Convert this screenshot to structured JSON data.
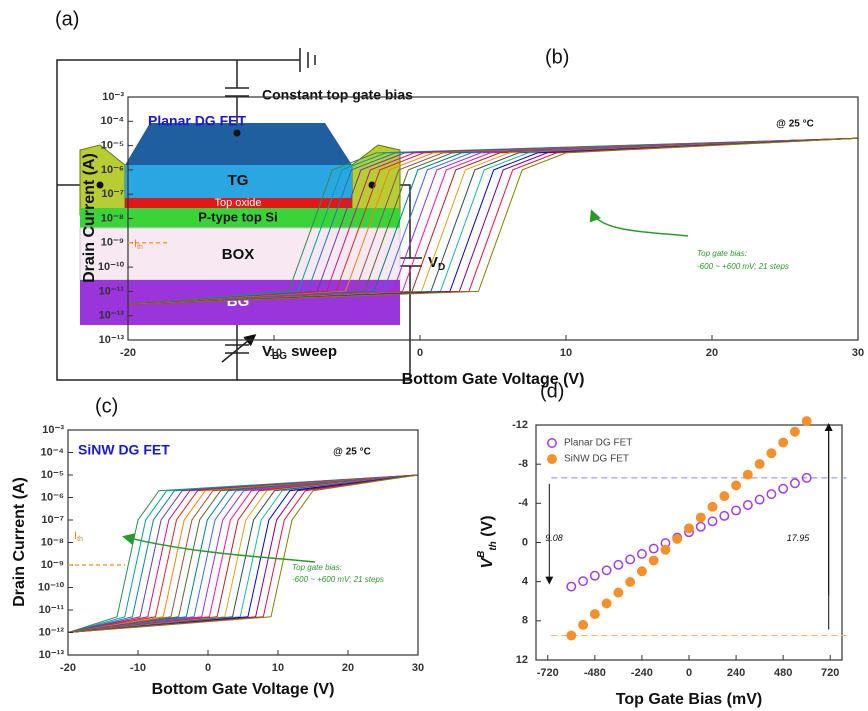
{
  "diagram": {
    "label": "(a)",
    "cap_label": "Constant top gate bias",
    "tg": "TG",
    "oxide": "Top oxide",
    "si": "P-type top Si",
    "box": "BOX",
    "bg": "BG",
    "vd": {
      "main": "V",
      "sub": "D"
    },
    "vbg": {
      "main": "V",
      "sub": "BG",
      "rest": " sweep"
    }
  },
  "chart_data": [
    {
      "type": "logline",
      "label": "(b)",
      "title": "Planar DG FET",
      "temperature": "@ 25 °C",
      "ylabel": "Drain Current (A)",
      "xlabel": "Bottom Gate Voltage (V)",
      "annotations": [
        "Top gate bias:",
        "-600 ~ +600 mV; 21 steps"
      ],
      "threshold_label": {
        "main": "I",
        "sub": "th"
      },
      "threshold_current": 1e-09,
      "xlim": [
        -20,
        30
      ],
      "xticks": [
        -20,
        -10,
        0,
        10,
        20,
        30
      ],
      "ylim": [
        1e-13,
        0.001
      ],
      "log_y": true,
      "yticks": [
        {
          "value": 0.001,
          "label": "10⁻³"
        },
        {
          "value": 0.0001,
          "label": "10⁻⁴"
        },
        {
          "value": 1e-05,
          "label": "10⁻⁵"
        },
        {
          "value": 1e-06,
          "label": "10⁻⁶"
        },
        {
          "value": 1e-07,
          "label": "10⁻⁷"
        },
        {
          "value": 1e-08,
          "label": "10⁻⁸"
        },
        {
          "value": 1e-09,
          "label": "10⁻⁹"
        },
        {
          "value": 1e-10,
          "label": "10⁻¹⁰"
        },
        {
          "value": 1e-11,
          "label": "10⁻¹¹"
        },
        {
          "value": 1e-12,
          "label": "10⁻¹²"
        },
        {
          "value": 1e-13,
          "label": "10⁻¹³"
        }
      ],
      "series": [
        {
          "color": "#2e8b57",
          "x": [
            -20,
            -9,
            -6,
            -3,
            30
          ],
          "values": [
            3e-12,
            1e-11,
            1e-06,
            5e-06,
            2e-05
          ]
        },
        {
          "color": "#00a0a0",
          "x": [
            -20,
            -8.35,
            -5.35,
            -2.35,
            30
          ],
          "values": [
            3e-12,
            1e-11,
            1e-06,
            5e-06,
            2e-05
          ]
        },
        {
          "color": "#1f77b4",
          "x": [
            -20,
            -7.7,
            -4.7,
            -1.7,
            30
          ],
          "values": [
            3e-12,
            1e-11,
            1e-06,
            5e-06,
            2e-05
          ]
        },
        {
          "color": "#6a3d9a",
          "x": [
            -20,
            -7.05,
            -4.05,
            -1.05,
            30
          ],
          "values": [
            3e-12,
            1e-11,
            1e-06,
            5e-06,
            2e-05
          ]
        },
        {
          "color": "#c71585",
          "x": [
            -20,
            -6.4,
            -3.4,
            -0.4,
            30
          ],
          "values": [
            3e-12,
            1e-11,
            1e-06,
            5e-06,
            2e-05
          ]
        },
        {
          "color": "#d62728",
          "x": [
            -20,
            -5.75,
            -2.75,
            0.25,
            30
          ],
          "values": [
            3e-12,
            1e-11,
            1e-06,
            5e-06,
            2e-05
          ]
        },
        {
          "color": "#ff7f0e",
          "x": [
            -20,
            -5.1,
            -2.1,
            0.9,
            30
          ],
          "values": [
            3e-12,
            1e-11,
            1e-06,
            5e-06,
            2e-05
          ]
        },
        {
          "color": "#8c564b",
          "x": [
            -20,
            -4.45,
            -1.45,
            1.55,
            30
          ],
          "values": [
            3e-12,
            1e-11,
            1e-06,
            5e-06,
            2e-05
          ]
        },
        {
          "color": "#556b2f",
          "x": [
            -20,
            -3.8,
            -0.8,
            2.2,
            30
          ],
          "values": [
            3e-12,
            1e-11,
            1e-06,
            5e-06,
            2e-05
          ]
        },
        {
          "color": "#008080",
          "x": [
            -20,
            -3.15,
            -0.15,
            2.85,
            30
          ],
          "values": [
            3e-12,
            1e-11,
            1e-06,
            5e-06,
            2e-05
          ]
        },
        {
          "color": "#4169e1",
          "x": [
            -20,
            -2.5,
            0.5,
            3.5,
            30
          ],
          "values": [
            3e-12,
            1e-11,
            1e-06,
            5e-06,
            2e-05
          ]
        },
        {
          "color": "#9932cc",
          "x": [
            -20,
            -1.85,
            1.15,
            4.15,
            30
          ],
          "values": [
            3e-12,
            1e-11,
            1e-06,
            5e-06,
            2e-05
          ]
        },
        {
          "color": "#ff1493",
          "x": [
            -20,
            -1.2,
            1.8,
            4.8,
            30
          ],
          "values": [
            3e-12,
            1e-11,
            1e-06,
            5e-06,
            2e-05
          ]
        },
        {
          "color": "#b22222",
          "x": [
            -20,
            -0.55,
            2.45,
            5.45,
            30
          ],
          "values": [
            3e-12,
            1e-11,
            1e-06,
            5e-06,
            2e-05
          ]
        },
        {
          "color": "#daa520",
          "x": [
            -20,
            0.1,
            3.1,
            6.1,
            30
          ],
          "values": [
            3e-12,
            1e-11,
            1e-06,
            5e-06,
            2e-05
          ]
        },
        {
          "color": "#2f4f4f",
          "x": [
            -20,
            0.75,
            3.75,
            6.75,
            30
          ],
          "values": [
            3e-12,
            1e-11,
            1e-06,
            5e-06,
            2e-05
          ]
        },
        {
          "color": "#20b2aa",
          "x": [
            -20,
            1.4,
            4.4,
            7.4,
            30
          ],
          "values": [
            3e-12,
            1e-11,
            1e-06,
            5e-06,
            2e-05
          ]
        },
        {
          "color": "#0000cd",
          "x": [
            -20,
            2.05,
            5.05,
            8.05,
            30
          ],
          "values": [
            3e-12,
            1e-11,
            1e-06,
            5e-06,
            2e-05
          ]
        },
        {
          "color": "#800080",
          "x": [
            -20,
            2.7,
            5.7,
            8.7,
            30
          ],
          "values": [
            3e-12,
            1e-11,
            1e-06,
            5e-06,
            2e-05
          ]
        },
        {
          "color": "#dc143c",
          "x": [
            -20,
            3.35,
            6.35,
            9.35,
            30
          ],
          "values": [
            3e-12,
            1e-11,
            1e-06,
            5e-06,
            2e-05
          ]
        },
        {
          "color": "#808000",
          "x": [
            -20,
            4,
            7,
            10,
            30
          ],
          "values": [
            3e-12,
            1e-11,
            1e-06,
            5e-06,
            2e-05
          ]
        }
      ]
    },
    {
      "type": "logline",
      "label": "(c)",
      "title": "SiNW DG FET",
      "temperature": "@ 25 °C",
      "ylabel": "Drain Current (A)",
      "xlabel": "Bottom Gate Voltage (V)",
      "annotations": [
        "Top gate bias:",
        "-600 ~ +600 mV; 21 steps"
      ],
      "threshold_label": {
        "main": "I",
        "sub": "th"
      },
      "threshold_current": 1e-09,
      "xlim": [
        -20,
        30
      ],
      "xticks": [
        -20,
        -10,
        0,
        10,
        20,
        30
      ],
      "ylim": [
        1e-13,
        0.001
      ],
      "log_y": true,
      "yticks": [
        {
          "value": 0.001,
          "label": "10⁻³"
        },
        {
          "value": 0.0001,
          "label": "10⁻⁴"
        },
        {
          "value": 1e-05,
          "label": "10⁻⁵"
        },
        {
          "value": 1e-06,
          "label": "10⁻⁶"
        },
        {
          "value": 1e-07,
          "label": "10⁻⁷"
        },
        {
          "value": 1e-08,
          "label": "10⁻⁸"
        },
        {
          "value": 1e-09,
          "label": "10⁻⁹"
        },
        {
          "value": 1e-10,
          "label": "10⁻¹⁰"
        },
        {
          "value": 1e-11,
          "label": "10⁻¹¹"
        },
        {
          "value": 1e-12,
          "label": "10⁻¹²"
        },
        {
          "value": 1e-13,
          "label": "10⁻¹³"
        }
      ],
      "series": [
        {
          "color": "#2e8b57",
          "x": [
            -20,
            -13,
            -10,
            -7,
            30
          ],
          "values": [
            1e-12,
            5e-12,
            1e-07,
            2e-06,
            1e-05
          ]
        },
        {
          "color": "#00a0a0",
          "x": [
            -20,
            -11.9,
            -8.9,
            -5.9,
            30
          ],
          "values": [
            1e-12,
            5e-12,
            1e-07,
            2e-06,
            1e-05
          ]
        },
        {
          "color": "#1f77b4",
          "x": [
            -20,
            -10.8,
            -7.8,
            -4.8,
            30
          ],
          "values": [
            1e-12,
            5e-12,
            1e-07,
            2e-06,
            1e-05
          ]
        },
        {
          "color": "#6a3d9a",
          "x": [
            -20,
            -9.7,
            -6.7,
            -3.7,
            30
          ],
          "values": [
            1e-12,
            5e-12,
            1e-07,
            2e-06,
            1e-05
          ]
        },
        {
          "color": "#c71585",
          "x": [
            -20,
            -8.6,
            -5.6,
            -2.6,
            30
          ],
          "values": [
            1e-12,
            5e-12,
            1e-07,
            2e-06,
            1e-05
          ]
        },
        {
          "color": "#d62728",
          "x": [
            -20,
            -7.5,
            -4.5,
            -1.5,
            30
          ],
          "values": [
            1e-12,
            5e-12,
            1e-07,
            2e-06,
            1e-05
          ]
        },
        {
          "color": "#ff7f0e",
          "x": [
            -20,
            -6.4,
            -3.4,
            -0.4,
            30
          ],
          "values": [
            1e-12,
            5e-12,
            1e-07,
            2e-06,
            1e-05
          ]
        },
        {
          "color": "#8c564b",
          "x": [
            -20,
            -5.3,
            -2.3,
            0.7,
            30
          ],
          "values": [
            1e-12,
            5e-12,
            1e-07,
            2e-06,
            1e-05
          ]
        },
        {
          "color": "#556b2f",
          "x": [
            -20,
            -4.2,
            -1.2,
            1.8,
            30
          ],
          "values": [
            1e-12,
            5e-12,
            1e-07,
            2e-06,
            1e-05
          ]
        },
        {
          "color": "#008080",
          "x": [
            -20,
            -3.1,
            -0.1,
            2.9,
            30
          ],
          "values": [
            1e-12,
            5e-12,
            1e-07,
            2e-06,
            1e-05
          ]
        },
        {
          "color": "#4169e1",
          "x": [
            -20,
            -2,
            1,
            4,
            30
          ],
          "values": [
            1e-12,
            5e-12,
            1e-07,
            2e-06,
            1e-05
          ]
        },
        {
          "color": "#9932cc",
          "x": [
            -20,
            -0.9,
            2.1,
            5.1,
            30
          ],
          "values": [
            1e-12,
            5e-12,
            1e-07,
            2e-06,
            1e-05
          ]
        },
        {
          "color": "#ff1493",
          "x": [
            -20,
            0.2,
            3.2,
            6.2,
            30
          ],
          "values": [
            1e-12,
            5e-12,
            1e-07,
            2e-06,
            1e-05
          ]
        },
        {
          "color": "#b22222",
          "x": [
            -20,
            1.3,
            4.3,
            7.3,
            30
          ],
          "values": [
            1e-12,
            5e-12,
            1e-07,
            2e-06,
            1e-05
          ]
        },
        {
          "color": "#daa520",
          "x": [
            -20,
            2.4,
            5.4,
            8.4,
            30
          ],
          "values": [
            1e-12,
            5e-12,
            1e-07,
            2e-06,
            1e-05
          ]
        },
        {
          "color": "#2f4f4f",
          "x": [
            -20,
            3.5,
            6.5,
            9.5,
            30
          ],
          "values": [
            1e-12,
            5e-12,
            1e-07,
            2e-06,
            1e-05
          ]
        },
        {
          "color": "#20b2aa",
          "x": [
            -20,
            4.6,
            7.6,
            10.6,
            30
          ],
          "values": [
            1e-12,
            5e-12,
            1e-07,
            2e-06,
            1e-05
          ]
        },
        {
          "color": "#0000cd",
          "x": [
            -20,
            5.7,
            8.7,
            11.7,
            30
          ],
          "values": [
            1e-12,
            5e-12,
            1e-07,
            2e-06,
            1e-05
          ]
        },
        {
          "color": "#800080",
          "x": [
            -20,
            6.8,
            9.8,
            12.8,
            30
          ],
          "values": [
            1e-12,
            5e-12,
            1e-07,
            2e-06,
            1e-05
          ]
        },
        {
          "color": "#dc143c",
          "x": [
            -20,
            7.9,
            10.9,
            13.9,
            30
          ],
          "values": [
            1e-12,
            5e-12,
            1e-07,
            2e-06,
            1e-05
          ]
        },
        {
          "color": "#808000",
          "x": [
            -20,
            9,
            12,
            15,
            30
          ],
          "values": [
            1e-12,
            5e-12,
            1e-07,
            2e-06,
            1e-05
          ]
        }
      ]
    },
    {
      "type": "scatter",
      "label": "(d)",
      "xlabel": "Top Gate Bias (mV)",
      "ylabel": {
        "main": "V",
        "sup": "B",
        "sub": "th",
        "unit": " (V)"
      },
      "xlim": [
        -780,
        780
      ],
      "xticks": [
        -720,
        -480,
        -240,
        0,
        240,
        480,
        720
      ],
      "ylim": [
        12,
        -12
      ],
      "yticks": [
        -12,
        -8,
        -4,
        0,
        4,
        8,
        12
      ],
      "annotations": [
        "9.08",
        "17.95"
      ],
      "x": [
        -600,
        -540,
        -480,
        -420,
        -360,
        -300,
        -240,
        -180,
        -120,
        -60,
        0,
        60,
        120,
        180,
        240,
        300,
        360,
        420,
        480,
        540,
        600
      ],
      "series": [
        {
          "name": "Planar DG FET",
          "color": "#a040e0",
          "marker": "open",
          "values": [
            4.5,
            3.95,
            3.39,
            2.84,
            2.28,
            1.73,
            1.17,
            0.62,
            0.06,
            -0.5,
            -1.05,
            -1.61,
            -2.16,
            -2.72,
            -3.27,
            -3.83,
            -4.38,
            -4.94,
            -5.49,
            -6.05,
            -6.6
          ]
        },
        {
          "name": "SiNW DG FET",
          "color": "#f5902a",
          "marker": "filled",
          "values": [
            9.5,
            8.41,
            7.31,
            6.22,
            5.12,
            4.03,
            2.93,
            1.84,
            0.74,
            -0.36,
            -1.45,
            -2.55,
            -3.64,
            -4.74,
            -5.83,
            -6.93,
            -8.02,
            -9.12,
            -10.21,
            -11.31,
            -12.4
          ]
        }
      ]
    }
  ]
}
